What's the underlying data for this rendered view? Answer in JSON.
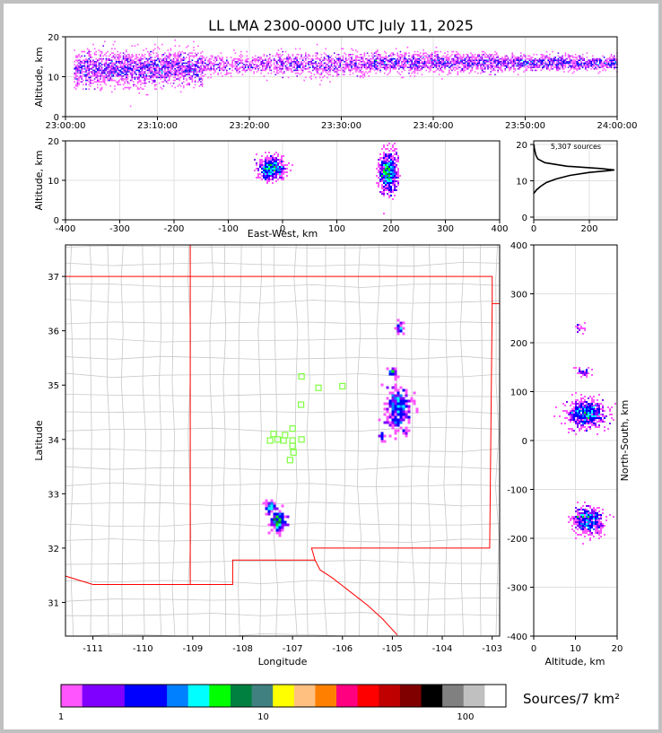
{
  "chart_data": [
    {
      "type": "scatter",
      "panel": "altitude-time",
      "title": "LL LMA 2300-0000 UTC July 11, 2025",
      "ylabel": "Altitude, km",
      "xlabel": "",
      "x_ticks": [
        "23:00:00",
        "23:10:00",
        "23:20:00",
        "23:30:00",
        "23:40:00",
        "23:50:00",
        "24:00:00"
      ],
      "xlim_minutes": [
        0,
        60
      ],
      "ylim": [
        0,
        20
      ],
      "y_ticks": [
        "0",
        "10",
        "20"
      ],
      "grid": true,
      "density_clusters": [
        {
          "t_start": 1,
          "t_end": 15,
          "alt": 12,
          "spread": 3.5,
          "weight": 1.0
        },
        {
          "t_start": 15,
          "t_end": 23,
          "alt": 13,
          "spread": 2.0,
          "weight": 0.35
        },
        {
          "t_start": 23,
          "t_end": 33,
          "alt": 13,
          "spread": 2.5,
          "weight": 0.5
        },
        {
          "t_start": 33,
          "t_end": 47,
          "alt": 13.5,
          "spread": 2.0,
          "weight": 0.6
        },
        {
          "t_start": 47,
          "t_end": 60,
          "alt": 13.5,
          "spread": 1.5,
          "weight": 0.55
        }
      ]
    },
    {
      "type": "scatter",
      "panel": "altitude-eastwest",
      "ylabel": "Altitude, km",
      "xlabel": "East-West, km",
      "xlim": [
        -400,
        400
      ],
      "x_ticks": [
        "-400",
        "-300",
        "-200",
        "-100",
        "0",
        "100",
        "200",
        "300",
        "400"
      ],
      "ylim": [
        0,
        20
      ],
      "y_ticks": [
        "0",
        "10",
        "20"
      ],
      "grid": true,
      "clusters": [
        {
          "x": -20,
          "alt": 13,
          "sx": 12,
          "salt": 2.0,
          "n": 520
        },
        {
          "x": 195,
          "alt": 12,
          "sx": 8,
          "salt": 3.5,
          "n": 700
        }
      ]
    },
    {
      "type": "line",
      "panel": "altitude-histogram",
      "annotation": "5,307 sources",
      "xlim": [
        0,
        300
      ],
      "x_ticks": [
        "0",
        "200"
      ],
      "ylim": [
        0,
        21
      ],
      "y_ticks": [
        "0",
        "10",
        "20"
      ],
      "profile": [
        [
          0,
          6.5
        ],
        [
          10,
          7.5
        ],
        [
          25,
          8.5
        ],
        [
          45,
          9.5
        ],
        [
          80,
          10.5
        ],
        [
          130,
          11.5
        ],
        [
          200,
          12.3
        ],
        [
          270,
          12.8
        ],
        [
          290,
          13.0
        ],
        [
          240,
          13.4
        ],
        [
          120,
          14.0
        ],
        [
          40,
          15.0
        ],
        [
          15,
          16.0
        ],
        [
          8,
          17.0
        ],
        [
          5,
          18.0
        ],
        [
          2,
          19.0
        ],
        [
          1,
          20.0
        ]
      ]
    },
    {
      "type": "scatter",
      "panel": "plan-view-map",
      "xlabel": "Longitude",
      "ylabel": "Latitude",
      "xlim": [
        -111.55,
        -102.85
      ],
      "ylim": [
        30.38,
        37.58
      ],
      "x_ticks": [
        "-111",
        "-110",
        "-109",
        "-108",
        "-107",
        "-106",
        "-105",
        "-104",
        "-103"
      ],
      "y_ticks": [
        "31",
        "32",
        "33",
        "34",
        "35",
        "36",
        "37"
      ],
      "clusters": [
        {
          "lon": -104.88,
          "lat": 34.55,
          "slon": 0.12,
          "slat": 0.2,
          "n": 300
        },
        {
          "lon": -105.0,
          "lat": 35.25,
          "slon": 0.04,
          "slat": 0.04,
          "n": 30
        },
        {
          "lon": -104.85,
          "lat": 36.05,
          "slon": 0.04,
          "slat": 0.05,
          "n": 25
        },
        {
          "lon": -107.3,
          "lat": 32.5,
          "slon": 0.08,
          "slat": 0.1,
          "n": 160
        },
        {
          "lon": -107.45,
          "lat": 32.75,
          "slon": 0.05,
          "slat": 0.06,
          "n": 50
        },
        {
          "lon": -105.2,
          "lat": 34.05,
          "slon": 0.03,
          "slat": 0.05,
          "n": 15
        }
      ],
      "stations": [
        [
          -106.82,
          35.16
        ],
        [
          -106.48,
          34.95
        ],
        [
          -106.0,
          34.98
        ],
        [
          -106.83,
          34.64
        ],
        [
          -107.0,
          34.2
        ],
        [
          -107.15,
          34.08
        ],
        [
          -107.3,
          34.0
        ],
        [
          -107.45,
          33.98
        ],
        [
          -107.18,
          33.98
        ],
        [
          -107.0,
          33.98
        ],
        [
          -106.82,
          34.0
        ],
        [
          -107.0,
          33.88
        ],
        [
          -106.98,
          33.76
        ],
        [
          -107.05,
          33.62
        ],
        [
          -107.38,
          34.1
        ]
      ]
    },
    {
      "type": "scatter",
      "panel": "northsouth-altitude",
      "xlabel": "Altitude, km",
      "ylabel": "North-South, km",
      "xlim": [
        0,
        20
      ],
      "x_ticks": [
        "0",
        "10",
        "20"
      ],
      "ylim": [
        -400,
        400
      ],
      "y_ticks": [
        "-400",
        "-300",
        "-200",
        "-100",
        "0",
        "100",
        "200",
        "300",
        "400"
      ],
      "clusters": [
        {
          "alt": 12.5,
          "ns": 55,
          "salt": 3.2,
          "sns": 14,
          "n": 700
        },
        {
          "alt": 13.0,
          "ns": -165,
          "salt": 2.5,
          "sns": 14,
          "n": 520
        },
        {
          "alt": 12.0,
          "ns": 140,
          "salt": 1.5,
          "sns": 5,
          "n": 40
        },
        {
          "alt": 11.0,
          "ns": 228,
          "salt": 1.0,
          "sns": 8,
          "n": 20
        }
      ]
    }
  ],
  "colorbar": {
    "label": "Sources/7 km²",
    "tick_labels": [
      "1",
      "10",
      "100"
    ],
    "colors": [
      "#ff55ff",
      "#8000ff",
      "#8000ff",
      "#0000ff",
      "#0000ff",
      "#0080ff",
      "#00ffff",
      "#00ff00",
      "#008040",
      "#408080",
      "#ffff00",
      "#ffc080",
      "#ff8000",
      "#ff0080",
      "#ff0000",
      "#c00000",
      "#800000",
      "#000000",
      "#808080",
      "#c0c0c0",
      "#ffffff"
    ]
  }
}
